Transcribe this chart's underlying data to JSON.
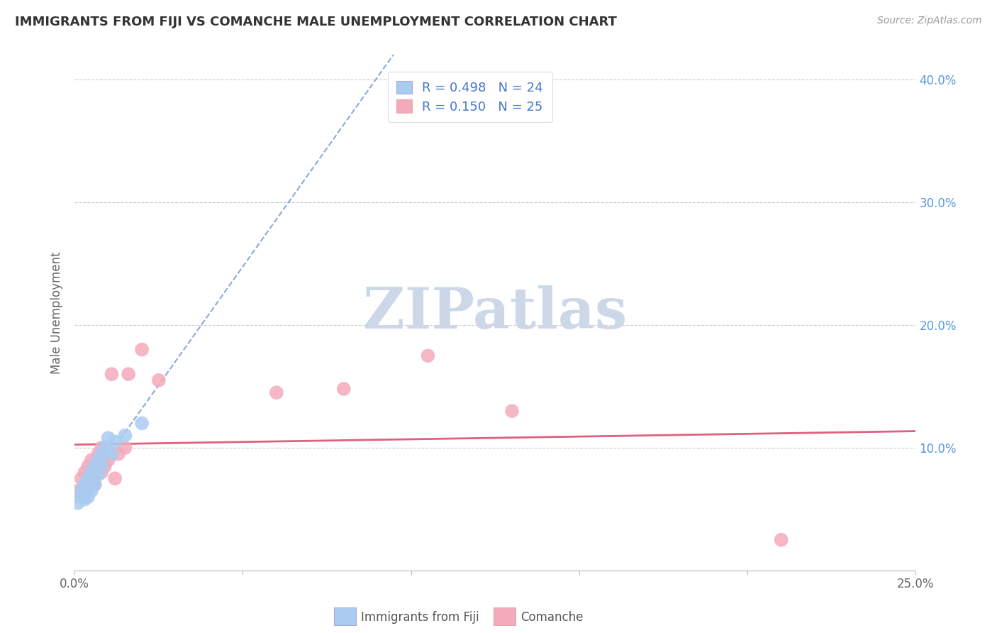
{
  "title": "IMMIGRANTS FROM FIJI VS COMANCHE MALE UNEMPLOYMENT CORRELATION CHART",
  "source": "Source: ZipAtlas.com",
  "ylabel": "Male Unemployment",
  "legend_label1": "Immigrants from Fiji",
  "legend_label2": "Comanche",
  "r1": 0.498,
  "n1": 24,
  "r2": 0.15,
  "n2": 25,
  "xlim": [
    0.0,
    0.25
  ],
  "ylim": [
    0.0,
    0.42
  ],
  "x_ticks": [
    0.0,
    0.05,
    0.1,
    0.15,
    0.2,
    0.25
  ],
  "y_ticks": [
    0.0,
    0.1,
    0.2,
    0.3,
    0.4
  ],
  "color_fiji": "#aaccf0",
  "color_comanche": "#f4aabb",
  "line_color_fiji": "#88aadd",
  "line_color_comanche": "#e06080",
  "watermark_text": "ZIPatlas",
  "watermark_color": "#ccd8e8",
  "fiji_x": [
    0.001,
    0.002,
    0.002,
    0.003,
    0.003,
    0.003,
    0.004,
    0.004,
    0.004,
    0.005,
    0.005,
    0.005,
    0.006,
    0.006,
    0.007,
    0.007,
    0.008,
    0.008,
    0.009,
    0.01,
    0.011,
    0.012,
    0.015,
    0.02
  ],
  "fiji_y": [
    0.055,
    0.06,
    0.065,
    0.058,
    0.062,
    0.07,
    0.06,
    0.068,
    0.075,
    0.065,
    0.072,
    0.08,
    0.07,
    0.085,
    0.078,
    0.09,
    0.085,
    0.095,
    0.1,
    0.108,
    0.095,
    0.105,
    0.11,
    0.12
  ],
  "comanche_x": [
    0.001,
    0.002,
    0.003,
    0.003,
    0.004,
    0.005,
    0.005,
    0.006,
    0.007,
    0.008,
    0.008,
    0.009,
    0.01,
    0.011,
    0.012,
    0.013,
    0.015,
    0.016,
    0.02,
    0.025,
    0.06,
    0.08,
    0.105,
    0.13,
    0.21
  ],
  "comanche_y": [
    0.065,
    0.075,
    0.06,
    0.08,
    0.085,
    0.075,
    0.09,
    0.07,
    0.095,
    0.08,
    0.1,
    0.085,
    0.09,
    0.16,
    0.075,
    0.095,
    0.1,
    0.16,
    0.18,
    0.155,
    0.145,
    0.148,
    0.175,
    0.13,
    0.025
  ]
}
